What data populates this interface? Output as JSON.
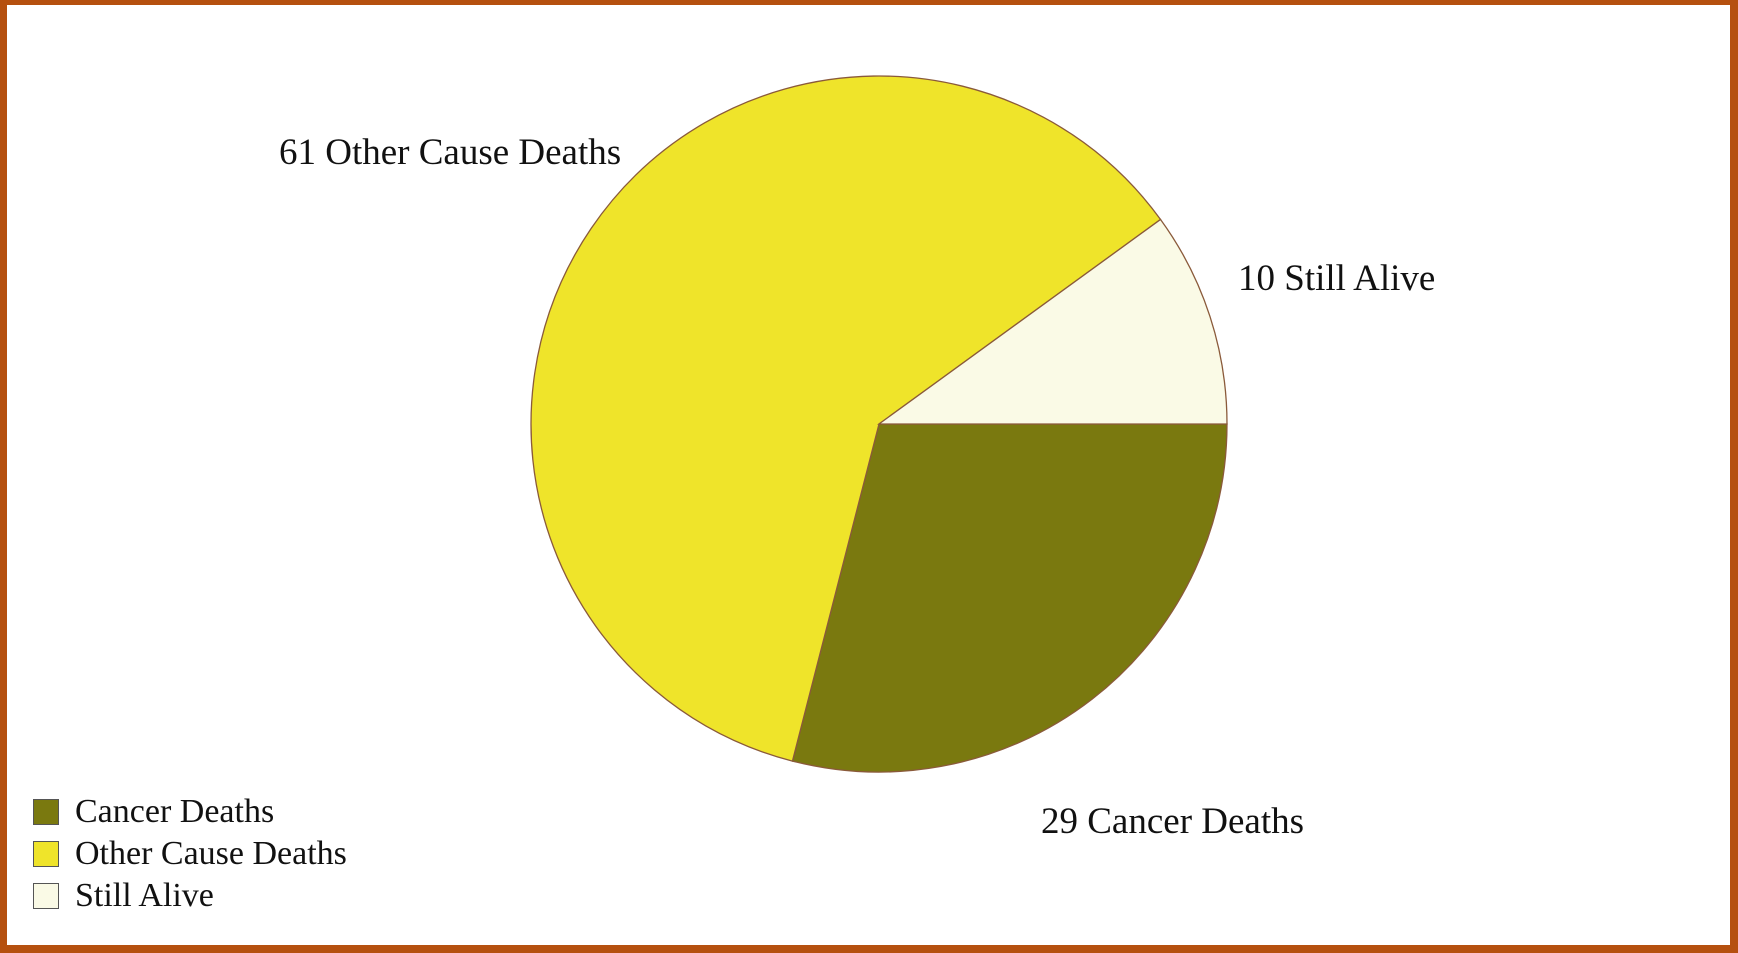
{
  "chart_data": {
    "type": "pie",
    "categories": [
      "Cancer Deaths",
      "Other Cause Deaths",
      "Still Alive"
    ],
    "values": [
      29,
      61,
      10
    ],
    "colors": [
      "#7a790f",
      "#efe42a",
      "#fafae6"
    ],
    "slice_labels": [
      "29 Cancer Deaths",
      "61 Other Cause Deaths",
      "10 Still Alive"
    ],
    "legend": {
      "placement": "bottom-left",
      "entries": [
        "Cancer Deaths",
        "Other Cause Deaths",
        "Still Alive"
      ]
    },
    "start_angle_deg": 0,
    "direction": "clockwise"
  }
}
